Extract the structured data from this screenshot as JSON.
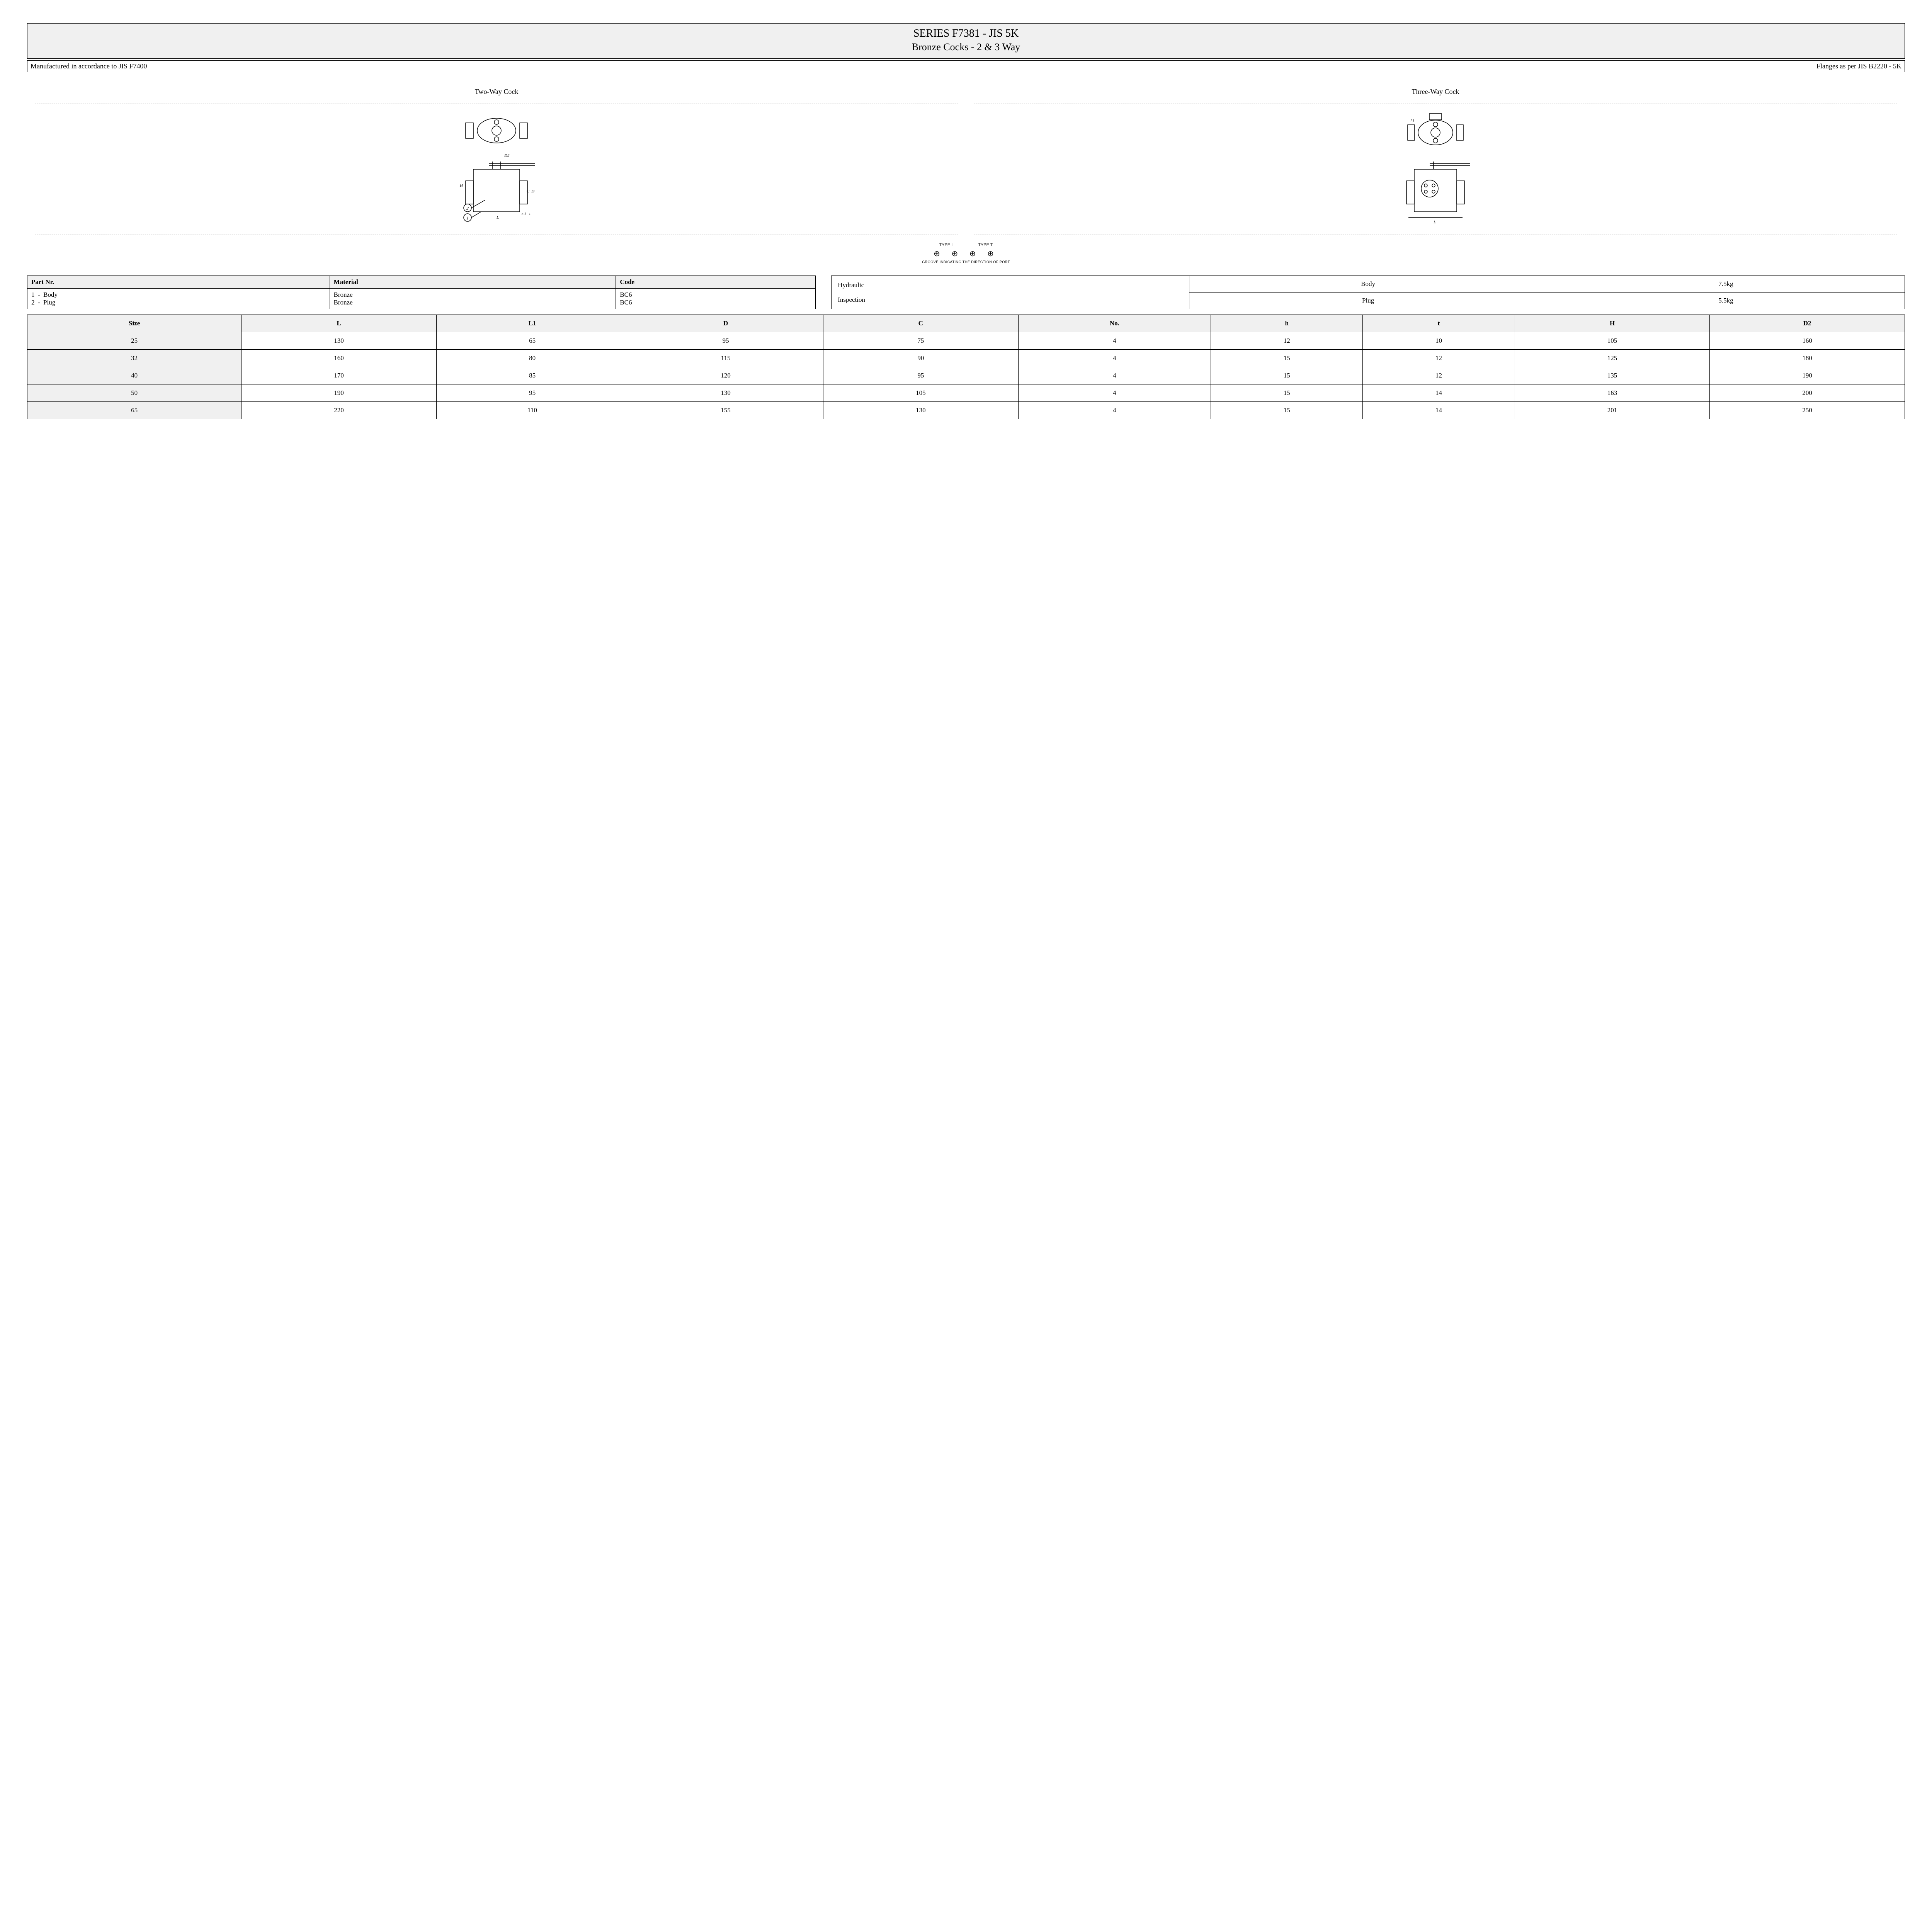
{
  "title": {
    "line1": "SERIES F7381 - JIS 5K",
    "line2": "Bronze Cocks - 2 & 3 Way"
  },
  "subtitle": {
    "left": "Manufactured in accordance to JIS F7400",
    "right": "Flanges as per JIS B2220 - 5K"
  },
  "diagrams": {
    "left_label": "Two-Way Cock",
    "right_label": "Three-Way Cock",
    "type_l": "TYPE L",
    "type_t": "TYPE T",
    "groove_caption": "GROOVE INDICATING THE DIRECTION OF PORT"
  },
  "material_table": {
    "headers": [
      "Part Nr.",
      "Material",
      "Code"
    ],
    "rows": [
      {
        "part": "1  -  Body",
        "material": "Bronze",
        "code": "BC6"
      },
      {
        "part": "2  -  Plug",
        "material": "Bronze",
        "code": "BC6"
      }
    ]
  },
  "inspection_table": {
    "label_top": "Hydraulic",
    "label_bottom": "Inspection",
    "rows": [
      {
        "item": "Body",
        "value": "7.5kg"
      },
      {
        "item": "Plug",
        "value": "5.5kg"
      }
    ]
  },
  "dim_table": {
    "headers": [
      "Size",
      "L",
      "L1",
      "D",
      "C",
      "No.",
      "h",
      "t",
      "H",
      "D2"
    ],
    "rows": [
      [
        "25",
        "130",
        "65",
        "95",
        "75",
        "4",
        "12",
        "10",
        "105",
        "160"
      ],
      [
        "32",
        "160",
        "80",
        "115",
        "90",
        "4",
        "15",
        "12",
        "125",
        "180"
      ],
      [
        "40",
        "170",
        "85",
        "120",
        "95",
        "4",
        "15",
        "12",
        "135",
        "190"
      ],
      [
        "50",
        "190",
        "95",
        "130",
        "105",
        "4",
        "15",
        "14",
        "163",
        "200"
      ],
      [
        "65",
        "220",
        "110",
        "155",
        "130",
        "4",
        "15",
        "14",
        "201",
        "250"
      ]
    ]
  },
  "colors": {
    "header_bg": "#f0f0f0",
    "border": "#000000",
    "text": "#000000",
    "page_bg": "#ffffff"
  }
}
